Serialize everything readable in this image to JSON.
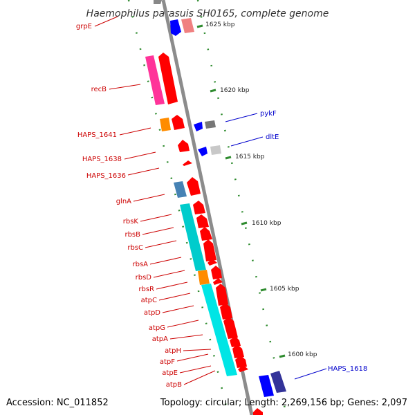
{
  "title": "Haemophilus parasuis SH0165, complete genome",
  "footer": {
    "accession": "Accession: NC_011852",
    "topology": "Topology: circular; Length: 2,269,156 bp; Genes: 2,097"
  },
  "colors": {
    "backbone": "#8c8c8c",
    "label_red": "#cc0000",
    "label_blue": "#0000cc",
    "tick": "#2e8b2e",
    "forward_gene": "#ff0000",
    "reverse_gene": "#0000ff",
    "rrna_like": "#00e5e5",
    "steelblue": "#4682b4",
    "orange": "#ff8c00",
    "magenta": "#ff3399",
    "gray": "#777777",
    "lightgray": "#c8c8c8",
    "salmon": "#f08080",
    "navy": "#333399"
  },
  "kbp_ticks": [
    "1625 kbp",
    "1620 kbp",
    "1615 kbp",
    "1610 kbp",
    "1605 kbp",
    "1600 kbp"
  ],
  "left_labels": [
    "grpE",
    "recB",
    "HAPS_1641",
    "HAPS_1638",
    "HAPS_1636",
    "glnA",
    "rbsK",
    "rbsB",
    "rbsC",
    "rbsA",
    "rbsD",
    "rbsR",
    "atpC",
    "atpD",
    "atpG",
    "atpA",
    "atpH",
    "atpF",
    "atpE",
    "atpB"
  ],
  "right_labels": [
    "pykF",
    "dltE",
    "HAPS_1618"
  ]
}
